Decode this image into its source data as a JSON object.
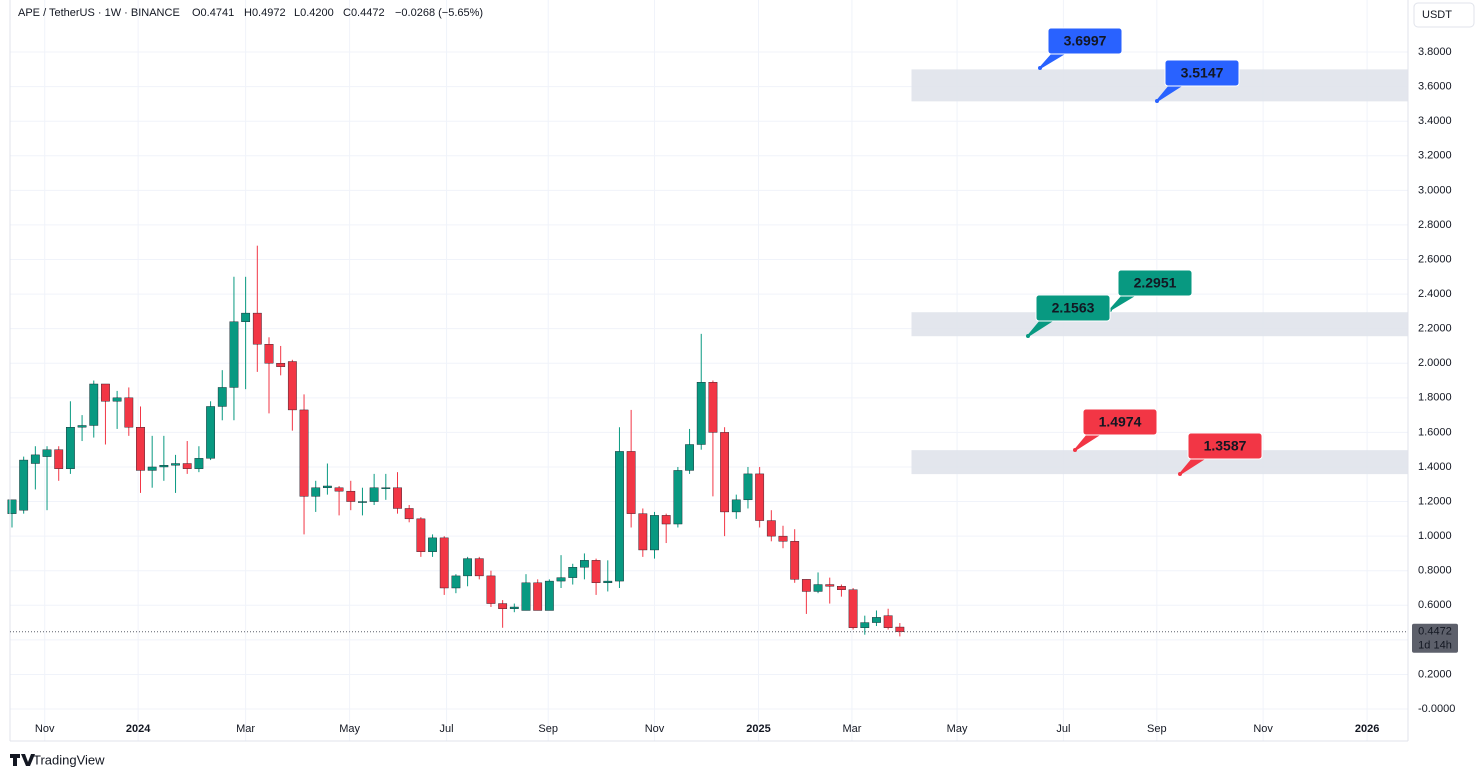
{
  "chart_data": {
    "type": "candlestick",
    "symbol": "APE / TetherUS · 1W · BINANCE",
    "ohlc_labels": [
      "O0.4741",
      "H0.4972",
      "L0.4200",
      "C0.4472",
      "−0.0268 (−5.65%)"
    ],
    "unit": "USDT",
    "brand": "TradingView",
    "categories": [
      null,
      null,
      null,
      null,
      null,
      null,
      null,
      null,
      null,
      null,
      null,
      null,
      null,
      null,
      null,
      null,
      null,
      null,
      null,
      null,
      null,
      null,
      null,
      null,
      null,
      null,
      null,
      null,
      null,
      null,
      null,
      null,
      null,
      null,
      null,
      null,
      null,
      null,
      null,
      null,
      null,
      null,
      null,
      null,
      null,
      null,
      null,
      null,
      null,
      null,
      null,
      null,
      null,
      null,
      null,
      null,
      null,
      null,
      null,
      null,
      null,
      null,
      null,
      null,
      null,
      null,
      null,
      null,
      null,
      null,
      null,
      null,
      null,
      null,
      null,
      null,
      null
    ],
    "open": [
      1.13,
      1.15,
      1.42,
      1.46,
      1.5,
      1.39,
      1.63,
      1.64,
      1.88,
      1.78,
      1.8,
      1.63,
      1.38,
      1.4,
      1.41,
      1.42,
      1.39,
      1.45,
      1.75,
      1.86,
      2.24,
      2.29,
      2.11,
      2.0,
      2.01,
      1.73,
      1.23,
      1.28,
      1.28,
      1.26,
      1.2,
      1.2,
      1.28,
      1.28,
      1.16,
      1.1,
      0.91,
      0.99,
      0.7,
      0.77,
      0.87,
      0.77,
      0.61,
      0.58,
      0.57,
      0.73,
      0.57,
      0.74,
      0.76,
      0.82,
      0.86,
      0.73,
      0.74,
      1.49,
      1.13,
      0.92,
      1.12,
      1.07,
      1.38,
      1.53,
      1.89,
      1.6,
      1.14,
      1.21,
      1.36,
      1.09,
      1.0,
      0.97,
      0.75,
      0.68,
      0.72,
      0.71,
      0.69,
      0.47,
      0.5,
      0.54,
      0.4741
    ],
    "high": [
      1.2,
      1.46,
      1.52,
      1.52,
      1.52,
      1.78,
      1.7,
      1.9,
      1.88,
      1.84,
      1.86,
      1.75,
      1.58,
      1.58,
      1.47,
      1.55,
      1.52,
      1.78,
      1.96,
      2.5,
      2.5,
      2.68,
      2.15,
      2.1,
      2.02,
      1.82,
      1.32,
      1.42,
      1.29,
      1.32,
      1.28,
      1.36,
      1.36,
      1.37,
      1.18,
      1.11,
      1.01,
      1.0,
      0.78,
      0.88,
      0.88,
      0.8,
      0.63,
      0.61,
      0.78,
      0.75,
      0.75,
      0.89,
      0.84,
      0.9,
      0.87,
      0.86,
      1.63,
      1.73,
      1.16,
      1.14,
      1.13,
      1.4,
      1.62,
      2.17,
      1.9,
      1.63,
      1.24,
      1.4,
      1.4,
      1.15,
      1.06,
      1.04,
      0.75,
      0.79,
      0.76,
      0.72,
      0.7,
      0.54,
      0.57,
      0.58,
      0.4972
    ],
    "low": [
      1.05,
      1.13,
      1.27,
      1.15,
      1.32,
      1.36,
      1.55,
      1.57,
      1.53,
      1.62,
      1.58,
      1.25,
      1.28,
      1.32,
      1.25,
      1.36,
      1.37,
      1.44,
      1.67,
      1.67,
      1.85,
      1.95,
      1.71,
      1.93,
      1.61,
      1.01,
      1.14,
      1.24,
      1.12,
      1.15,
      1.12,
      1.18,
      1.21,
      1.13,
      1.08,
      0.88,
      0.88,
      0.66,
      0.67,
      0.71,
      0.75,
      0.59,
      0.47,
      0.56,
      0.57,
      0.57,
      0.57,
      0.7,
      0.72,
      0.75,
      0.66,
      0.68,
      0.7,
      1.05,
      0.88,
      0.87,
      0.96,
      1.05,
      1.36,
      1.5,
      1.23,
      1.0,
      1.1,
      1.16,
      1.05,
      0.97,
      0.93,
      0.73,
      0.55,
      0.67,
      0.61,
      0.65,
      0.46,
      0.43,
      0.48,
      0.46,
      0.42
    ],
    "close": [
      1.21,
      1.44,
      1.47,
      1.5,
      1.39,
      1.63,
      1.64,
      1.88,
      1.78,
      1.8,
      1.63,
      1.38,
      1.4,
      1.41,
      1.42,
      1.39,
      1.45,
      1.75,
      1.86,
      2.24,
      2.29,
      2.11,
      2.0,
      1.98,
      1.73,
      1.23,
      1.28,
      1.29,
      1.26,
      1.2,
      1.2,
      1.28,
      1.28,
      1.16,
      1.1,
      0.91,
      0.99,
      0.7,
      0.77,
      0.87,
      0.77,
      0.61,
      0.58,
      0.59,
      0.73,
      0.57,
      0.74,
      0.76,
      0.82,
      0.86,
      0.73,
      0.74,
      1.49,
      1.13,
      0.92,
      1.12,
      1.07,
      1.38,
      1.53,
      1.89,
      1.6,
      1.14,
      1.21,
      1.36,
      1.09,
      1.0,
      0.97,
      0.75,
      0.68,
      0.72,
      0.71,
      0.69,
      0.47,
      0.5,
      0.53,
      0.47,
      0.4472
    ],
    "up_color": "#089981",
    "down_color": "#f23645",
    "last_price": {
      "value": 0.4472,
      "label": "0.4472"
    },
    "countdown": "1d 14h",
    "xlim": [
      -0.17,
      119.5
    ],
    "xticks": [
      {
        "value": 2.8,
        "label": "Nov"
      },
      {
        "value": 10.8,
        "label": "2024"
      },
      {
        "value": 20.0,
        "label": "Mar"
      },
      {
        "value": 28.9,
        "label": "May"
      },
      {
        "value": 37.2,
        "label": "Jul"
      },
      {
        "value": 45.9,
        "label": "Sep"
      },
      {
        "value": 55.0,
        "label": "Nov"
      },
      {
        "value": 63.9,
        "label": "2025"
      },
      {
        "value": 71.9,
        "label": "Mar"
      },
      {
        "value": 80.9,
        "label": "May"
      },
      {
        "value": 90.0,
        "label": "Jul"
      },
      {
        "value": 98.0,
        "label": "Sep"
      },
      {
        "value": 107.1,
        "label": "Nov"
      },
      {
        "value": 116.0,
        "label": "2026"
      }
    ],
    "ylim": [
      -0.185,
      4.101
    ],
    "yticks": [
      {
        "value": 0,
        "label": "-0.0000"
      },
      {
        "value": 0.2,
        "label": "0.2000"
      },
      {
        "value": 0.4,
        "label": "0.4000"
      },
      {
        "value": 0.6,
        "label": "0.6000"
      },
      {
        "value": 0.8,
        "label": "0.8000"
      },
      {
        "value": 1.0,
        "label": "1.0000"
      },
      {
        "value": 1.2,
        "label": "1.2000"
      },
      {
        "value": 1.4,
        "label": "1.4000"
      },
      {
        "value": 1.6,
        "label": "1.6000"
      },
      {
        "value": 1.8,
        "label": "1.8000"
      },
      {
        "value": 2.0,
        "label": "2.0000"
      },
      {
        "value": 2.2,
        "label": "2.2000"
      },
      {
        "value": 2.4,
        "label": "2.4000"
      },
      {
        "value": 2.6,
        "label": "2.6000"
      },
      {
        "value": 2.8,
        "label": "2.8000"
      },
      {
        "value": 3.0,
        "label": "3.0000"
      },
      {
        "value": 3.2,
        "label": "3.2000"
      },
      {
        "value": 3.4,
        "label": "3.4000"
      },
      {
        "value": 3.6,
        "label": "3.6000"
      },
      {
        "value": 3.8,
        "label": "3.8000"
      }
    ],
    "grid": true,
    "zones": [
      {
        "start": 77,
        "low": 3.5147,
        "high": 3.6997
      },
      {
        "start": 77,
        "low": 2.1563,
        "high": 2.2951
      },
      {
        "start": 77,
        "low": 1.3587,
        "high": 1.4974
      }
    ],
    "zone_color": "#e0e3eb",
    "annotations": [
      {
        "value": 3.6997,
        "color": "#2962ff"
      },
      {
        "value": 3.5147,
        "color": "#2962ff"
      },
      {
        "value": 2.2951,
        "color": "#089981"
      },
      {
        "value": 2.1563,
        "color": "#089981"
      },
      {
        "value": 1.4974,
        "color": "#f23645"
      },
      {
        "value": 1.3587,
        "color": "#f23645"
      }
    ]
  }
}
